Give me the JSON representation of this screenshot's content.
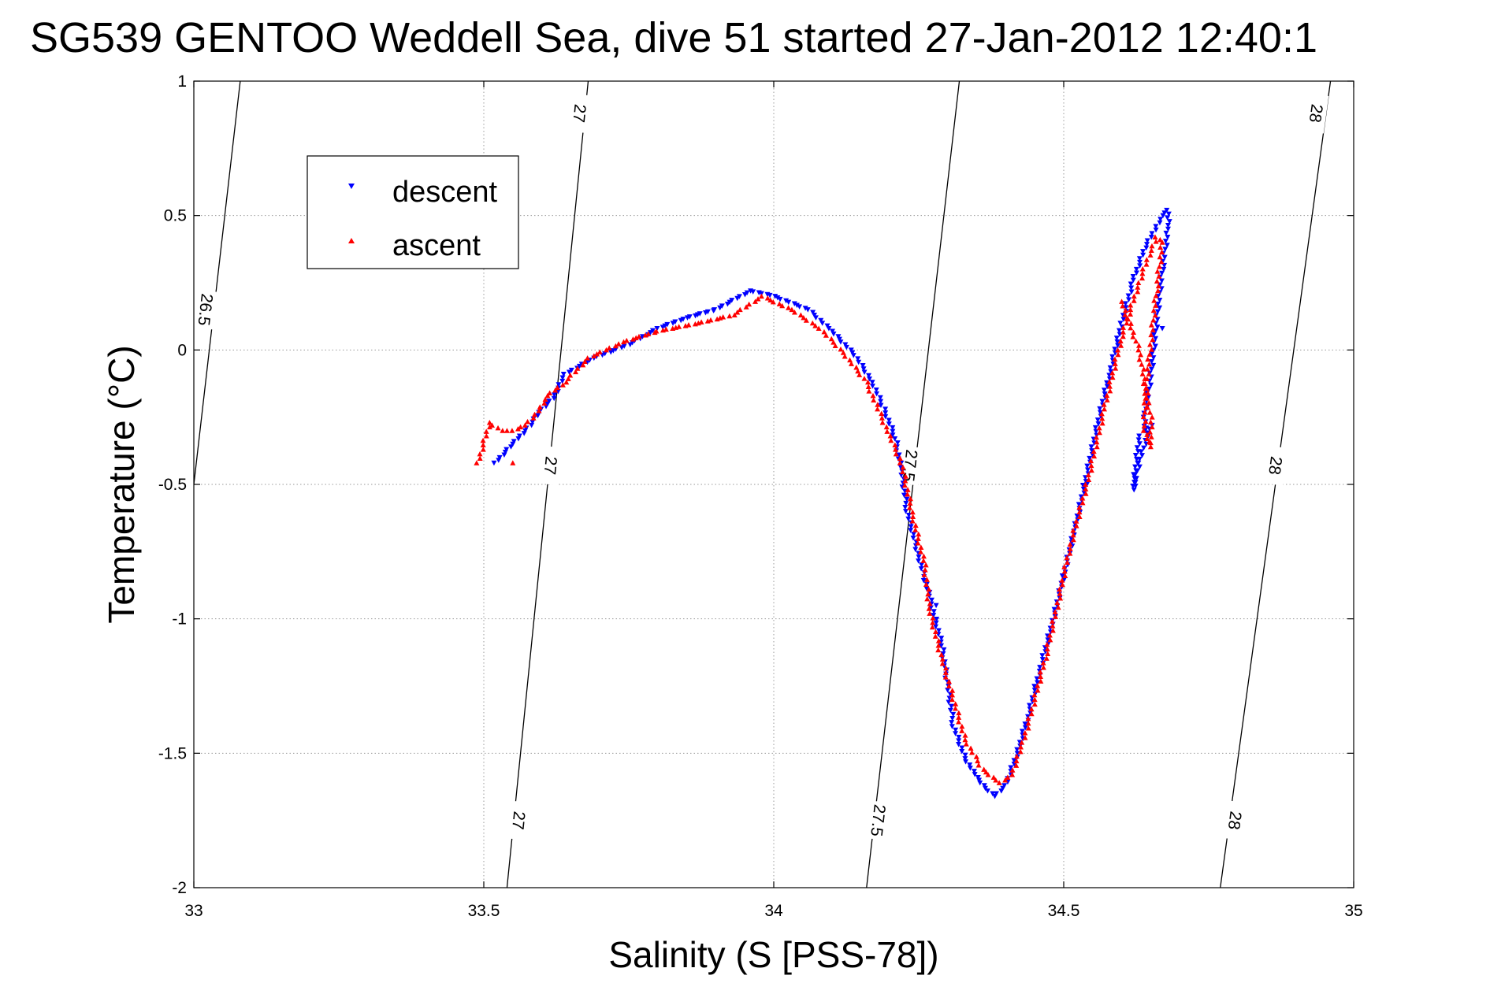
{
  "chart_data": {
    "type": "scatter",
    "title": "SG539 GENTOO Weddell Sea, dive 51 started 27-Jan-2012 12:40:1",
    "xlabel": "Salinity (S [PSS-78])",
    "ylabel": "Temperature (°C)",
    "xlim": [
      33,
      35
    ],
    "ylim": [
      -2,
      1
    ],
    "xticks": [
      33,
      33.5,
      34,
      34.5,
      35
    ],
    "xtick_labels": [
      "33",
      "33.5",
      "34",
      "34.5",
      "35"
    ],
    "yticks": [
      1,
      0.5,
      0,
      -0.5,
      -1,
      -1.5,
      -2
    ],
    "ytick_labels": [
      "1",
      "0.5",
      "0",
      "-0.5",
      "-1",
      "-1.5",
      "-2"
    ],
    "grid": true,
    "legend_position": "top-left",
    "density_contours": [
      {
        "level": "26.5",
        "line": [
          [
            32.92,
            -2.0
          ],
          [
            33.08,
            1.0
          ]
        ],
        "labels": [
          {
            "text": "26.5",
            "s": 33.02,
            "t": 0.15
          }
        ]
      },
      {
        "level": "27",
        "line": [
          [
            33.54,
            -2.0
          ],
          [
            33.68,
            1.0
          ]
        ],
        "labels": [
          {
            "text": "27",
            "s": 33.56,
            "t": -1.75
          },
          {
            "text": "27",
            "s": 33.615,
            "t": -0.43
          },
          {
            "text": "27",
            "s": 33.665,
            "t": 0.88
          }
        ]
      },
      {
        "level": "27.5",
        "line": [
          [
            34.16,
            -2.0
          ],
          [
            34.32,
            1.0
          ]
        ],
        "labels": [
          {
            "text": "27.5",
            "s": 34.18,
            "t": -1.75
          },
          {
            "text": "27.5",
            "s": 34.235,
            "t": -0.43
          }
        ]
      },
      {
        "level": "28",
        "line": [
          [
            34.77,
            -2.0
          ],
          [
            34.96,
            1.0
          ]
        ],
        "labels": [
          {
            "text": "28",
            "s": 34.795,
            "t": -1.75
          },
          {
            "text": "28",
            "s": 34.865,
            "t": -0.43
          },
          {
            "text": "28",
            "s": 34.935,
            "t": 0.88
          }
        ]
      }
    ],
    "series": [
      {
        "name": "descent",
        "color": "#0000ff",
        "marker": "triangle-down",
        "points": [
          [
            33.52,
            -0.42
          ],
          [
            33.55,
            -0.35
          ],
          [
            33.58,
            -0.28
          ],
          [
            33.6,
            -0.22
          ],
          [
            33.62,
            -0.18
          ],
          [
            33.64,
            -0.09
          ],
          [
            33.69,
            -0.03
          ],
          [
            33.75,
            0.02
          ],
          [
            33.8,
            0.08
          ],
          [
            33.85,
            0.12
          ],
          [
            33.9,
            0.15
          ],
          [
            33.96,
            0.22
          ],
          [
            34.0,
            0.2
          ],
          [
            34.06,
            0.15
          ],
          [
            34.1,
            0.07
          ],
          [
            34.14,
            -0.02
          ],
          [
            34.17,
            -0.12
          ],
          [
            34.19,
            -0.22
          ],
          [
            34.21,
            -0.33
          ],
          [
            34.22,
            -0.45
          ],
          [
            34.23,
            -0.6
          ],
          [
            34.25,
            -0.77
          ],
          [
            34.27,
            -0.93
          ],
          [
            34.29,
            -1.1
          ],
          [
            34.3,
            -1.25
          ],
          [
            34.31,
            -1.4
          ],
          [
            34.33,
            -1.52
          ],
          [
            34.35,
            -1.59
          ],
          [
            34.37,
            -1.64
          ],
          [
            34.38,
            -1.66
          ],
          [
            34.4,
            -1.62
          ],
          [
            34.42,
            -1.5
          ],
          [
            34.44,
            -1.35
          ],
          [
            34.46,
            -1.18
          ],
          [
            34.48,
            -1.02
          ],
          [
            34.5,
            -0.84
          ],
          [
            34.52,
            -0.66
          ],
          [
            34.54,
            -0.46
          ],
          [
            34.56,
            -0.26
          ],
          [
            34.58,
            -0.08
          ],
          [
            34.6,
            0.1
          ],
          [
            34.62,
            0.26
          ],
          [
            34.64,
            0.38
          ],
          [
            34.66,
            0.46
          ],
          [
            34.67,
            0.5
          ],
          [
            34.68,
            0.52
          ],
          [
            34.68,
            0.45
          ],
          [
            34.67,
            0.3
          ],
          [
            34.66,
            0.1
          ],
          [
            34.65,
            -0.1
          ],
          [
            34.64,
            -0.25
          ],
          [
            34.64,
            -0.3
          ],
          [
            34.65,
            -0.28
          ],
          [
            34.63,
            -0.42
          ],
          [
            34.62,
            -0.52
          ],
          [
            34.63,
            -0.32
          ],
          [
            34.67,
            0.08
          ],
          [
            34.54,
            -0.5
          ],
          [
            34.28,
            -0.95
          ]
        ]
      },
      {
        "name": "ascent",
        "color": "#ff0000",
        "marker": "triangle-up",
        "points": [
          [
            33.49,
            -0.42
          ],
          [
            33.51,
            -0.27
          ],
          [
            33.53,
            -0.3
          ],
          [
            33.55,
            -0.3
          ],
          [
            33.57,
            -0.28
          ],
          [
            33.59,
            -0.24
          ],
          [
            33.61,
            -0.17
          ],
          [
            33.64,
            -0.12
          ],
          [
            33.68,
            -0.03
          ],
          [
            33.74,
            0.03
          ],
          [
            33.8,
            0.07
          ],
          [
            33.87,
            0.1
          ],
          [
            33.93,
            0.13
          ],
          [
            33.98,
            0.2
          ],
          [
            34.03,
            0.15
          ],
          [
            34.08,
            0.08
          ],
          [
            34.12,
            -0.01
          ],
          [
            34.16,
            -0.12
          ],
          [
            34.18,
            -0.22
          ],
          [
            34.2,
            -0.32
          ],
          [
            34.22,
            -0.42
          ],
          [
            34.24,
            -0.62
          ],
          [
            34.26,
            -0.8
          ],
          [
            34.27,
            -0.98
          ],
          [
            34.29,
            -1.15
          ],
          [
            34.31,
            -1.3
          ],
          [
            34.33,
            -1.45
          ],
          [
            34.36,
            -1.56
          ],
          [
            34.39,
            -1.61
          ],
          [
            34.41,
            -1.58
          ],
          [
            34.43,
            -1.46
          ],
          [
            34.45,
            -1.3
          ],
          [
            34.47,
            -1.13
          ],
          [
            34.49,
            -0.94
          ],
          [
            34.51,
            -0.74
          ],
          [
            34.54,
            -0.5
          ],
          [
            34.57,
            -0.22
          ],
          [
            34.6,
            0.05
          ],
          [
            34.63,
            0.25
          ],
          [
            34.65,
            0.37
          ],
          [
            34.66,
            0.42
          ],
          [
            34.67,
            0.4
          ],
          [
            34.66,
            0.22
          ],
          [
            34.65,
            0.02
          ],
          [
            34.64,
            -0.18
          ],
          [
            34.64,
            -0.3
          ],
          [
            34.65,
            -0.36
          ],
          [
            34.65,
            -0.25
          ],
          [
            34.63,
            0.0
          ],
          [
            34.6,
            0.18
          ],
          [
            33.55,
            -0.42
          ]
        ]
      }
    ]
  }
}
